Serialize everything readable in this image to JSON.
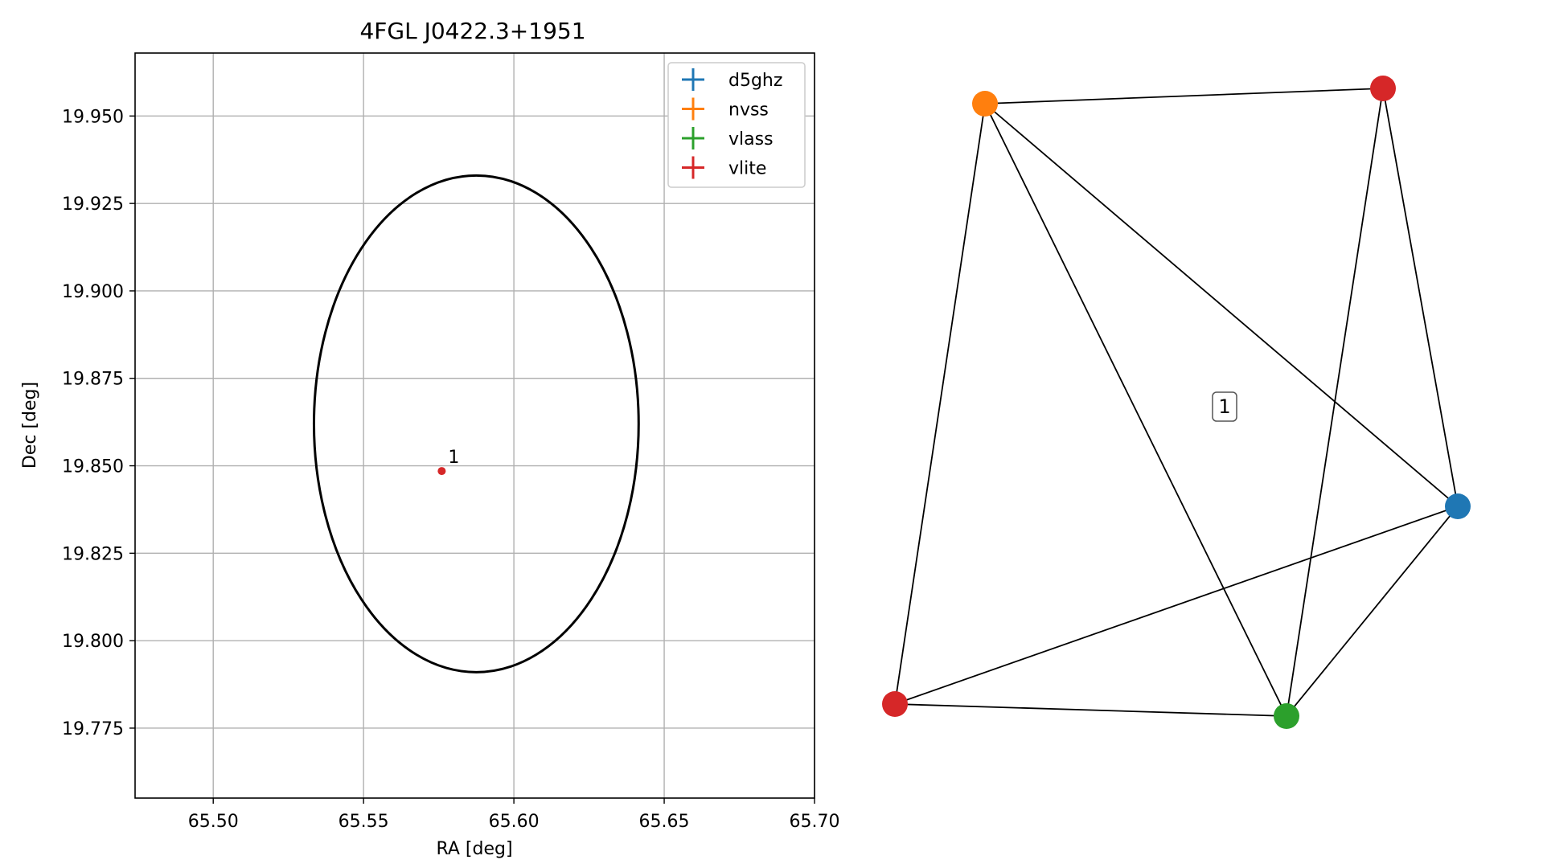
{
  "chart_data": [
    {
      "type": "scatter",
      "title": "4FGL J0422.3+1951",
      "xlabel": "RA [deg]",
      "ylabel": "Dec [deg]",
      "xlim": [
        65.474,
        65.7
      ],
      "ylim": [
        19.755,
        19.968
      ],
      "xticks": [
        "65.50",
        "65.55",
        "65.60",
        "65.65",
        "65.70"
      ],
      "yticks": [
        "19.775",
        "19.800",
        "19.825",
        "19.850",
        "19.875",
        "19.900",
        "19.925",
        "19.950"
      ],
      "grid": true,
      "legend_position": "top-right",
      "legend": [
        {
          "label": "d5ghz",
          "color": "#1f77b4"
        },
        {
          "label": "nvss",
          "color": "#ff7f0e"
        },
        {
          "label": "vlass",
          "color": "#2ca02c"
        },
        {
          "label": "vlite",
          "color": "#d62728"
        }
      ],
      "ellipse": {
        "center_ra": 65.5875,
        "center_dec": 19.862,
        "semi_ra": 0.054,
        "semi_dec": 0.071,
        "color": "#000000"
      },
      "points": [
        {
          "label": "1",
          "ra": 65.576,
          "dec": 19.8485,
          "color": "#d62728"
        }
      ]
    },
    {
      "type": "graph",
      "cluster_label": "1",
      "nodes": [
        {
          "id": "nvss",
          "color": "#ff7f0e"
        },
        {
          "id": "vlite-top",
          "color": "#d62728"
        },
        {
          "id": "d5ghz",
          "color": "#1f77b4"
        },
        {
          "id": "vlass",
          "color": "#2ca02c"
        },
        {
          "id": "vlite-bottom",
          "color": "#d62728"
        }
      ],
      "edges": [
        [
          "nvss",
          "vlite-top"
        ],
        [
          "nvss",
          "d5ghz"
        ],
        [
          "nvss",
          "vlass"
        ],
        [
          "nvss",
          "vlite-bottom"
        ],
        [
          "vlite-top",
          "d5ghz"
        ],
        [
          "vlite-top",
          "vlass"
        ],
        [
          "d5ghz",
          "vlass"
        ],
        [
          "d5ghz",
          "vlite-bottom"
        ],
        [
          "vlass",
          "vlite-bottom"
        ]
      ]
    }
  ]
}
